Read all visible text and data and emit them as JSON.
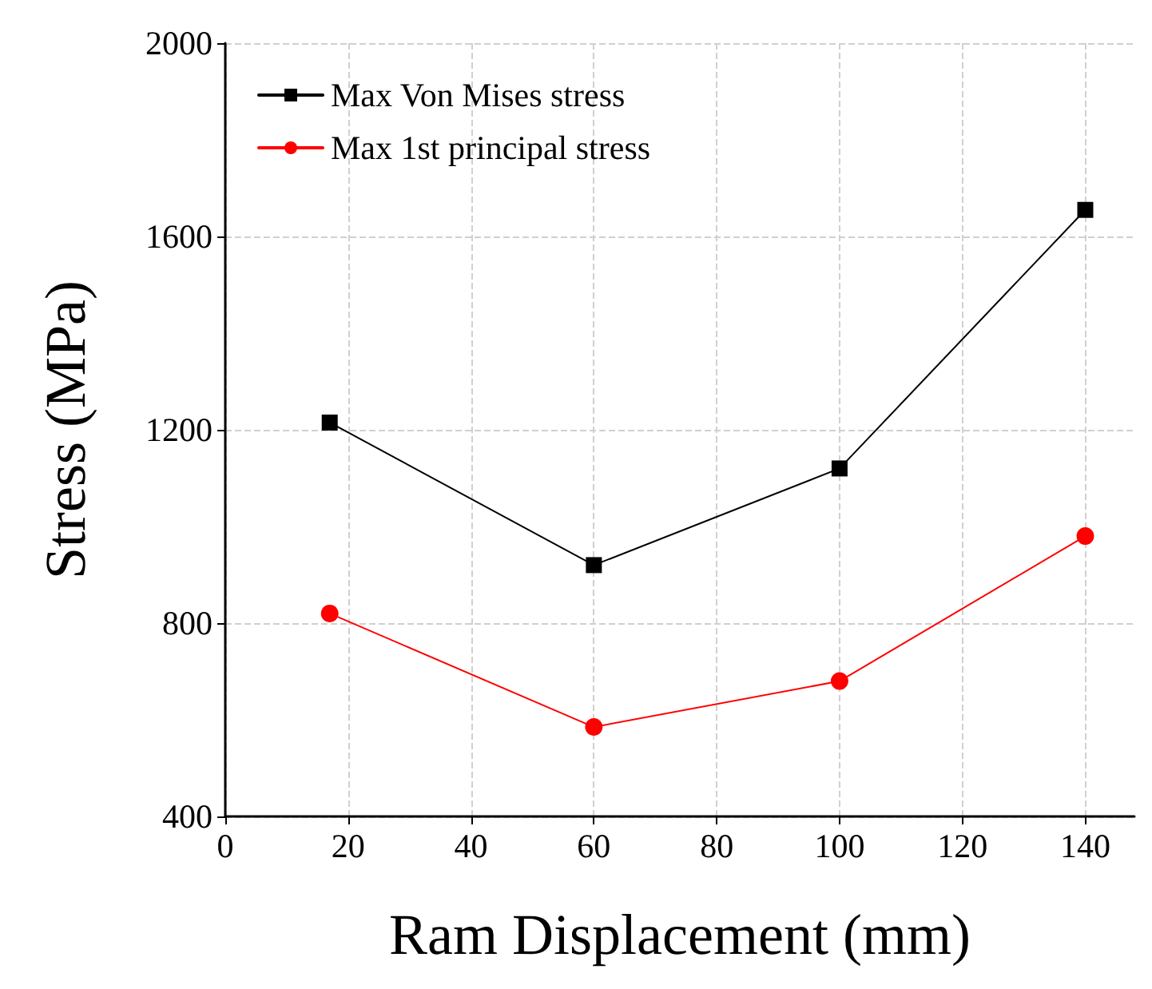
{
  "chart_data": {
    "type": "line",
    "xlabel": "Ram Displacement (mm)",
    "ylabel": "Stress (MPa)",
    "x": [
      17,
      60,
      100,
      140
    ],
    "series": [
      {
        "name": "Max Von Mises stress",
        "color": "#000000",
        "marker": "square",
        "values": [
          1215,
          920,
          1120,
          1655
        ]
      },
      {
        "name": "Max 1st principal stress",
        "color": "#ff0000",
        "marker": "circle",
        "values": [
          820,
          585,
          680,
          980
        ]
      }
    ],
    "xlim": [
      0,
      148
    ],
    "xticks": [
      0,
      20,
      40,
      60,
      80,
      100,
      120,
      140
    ],
    "ylim": [
      400,
      2000
    ],
    "yticks": [
      400,
      800,
      1200,
      1600,
      2000
    ],
    "grid": true,
    "legend": "top left",
    "line_style": "solid"
  }
}
